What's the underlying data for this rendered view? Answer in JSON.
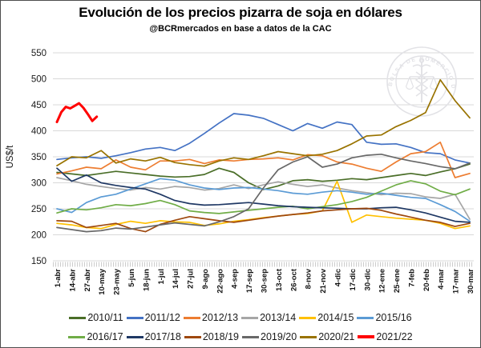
{
  "watermark": {
    "text": "BOLSA DE COMERCIO DE ROSARIO",
    "color": "#e2e2e6"
  },
  "chart_data": {
    "type": "line",
    "title": "Evolución de los precios pizarra de soja en dólares",
    "subtitle": "@BCRmercados en base a datos de la CAC",
    "ylabel": "US$/t",
    "ylim": [
      150,
      550
    ],
    "yticks": [
      550,
      500,
      450,
      400,
      350,
      300,
      250,
      200,
      150
    ],
    "grid": "horizontal",
    "grid_color": "#d9d9d9",
    "legend_position": "bottom",
    "x_tick_labels": [
      "1-abr",
      "14-abr",
      "27-abr",
      "10-may",
      "23-may",
      "5-jun",
      "18-jun",
      "1-jul",
      "14-jul",
      "27-jul",
      "9-ago",
      "22-ago",
      "4-sep",
      "17-sep",
      "30-sep",
      "13-oct",
      "26-oct",
      "8-nov",
      "21-nov",
      "4-dic",
      "17-dic",
      "30-dic",
      "12-ene",
      "25-ene",
      "7-feb",
      "20-feb",
      "4-mar",
      "17-mar",
      "30-mar"
    ],
    "series": [
      {
        "name": "2010/11",
        "color": "#4a6e28",
        "values": [
          320,
          317,
          314,
          318,
          322,
          319,
          316,
          313,
          311,
          312,
          316,
          328,
          320,
          300,
          287,
          294,
          304,
          306,
          303,
          305,
          308,
          306,
          310,
          314,
          318,
          314,
          321,
          327,
          336
        ]
      },
      {
        "name": "2011/12",
        "color": "#4472c4",
        "values": [
          345,
          348,
          350,
          347,
          352,
          358,
          365,
          368,
          362,
          376,
          395,
          415,
          433,
          430,
          424,
          412,
          400,
          414,
          405,
          417,
          412,
          378,
          374,
          375,
          368,
          358,
          356,
          344,
          338
        ]
      },
      {
        "name": "2012/13",
        "color": "#ed7d31",
        "values": [
          317,
          323,
          330,
          327,
          344,
          330,
          325,
          342,
          342,
          345,
          337,
          344,
          342,
          345,
          346,
          348,
          344,
          354,
          352,
          340,
          336,
          328,
          322,
          340,
          356,
          360,
          378,
          310,
          318
        ]
      },
      {
        "name": "2013/14",
        "color": "#a6a6a6",
        "values": [
          310,
          304,
          297,
          293,
          289,
          286,
          291,
          288,
          293,
          291,
          286,
          289,
          296,
          289,
          296,
          302,
          297,
          293,
          296,
          290,
          285,
          281,
          277,
          280,
          279,
          273,
          270,
          278,
          230
        ]
      },
      {
        "name": "2014/15",
        "color": "#ffc000",
        "values": [
          222,
          219,
          214,
          212,
          220,
          226,
          222,
          227,
          225,
          224,
          218,
          221,
          226,
          229,
          233,
          236,
          239,
          241,
          246,
          303,
          224,
          238,
          235,
          232,
          230,
          228,
          222,
          212,
          217
        ]
      },
      {
        "name": "2015/16",
        "color": "#5b9bd5",
        "values": [
          250,
          243,
          262,
          273,
          278,
          288,
          298,
          308,
          305,
          296,
          290,
          287,
          290,
          291,
          288,
          285,
          280,
          278,
          282,
          285,
          282,
          278,
          280,
          276,
          272,
          270,
          258,
          245,
          226
        ]
      },
      {
        "name": "2016/17",
        "color": "#70ad47",
        "values": [
          242,
          250,
          248,
          252,
          258,
          256,
          260,
          266,
          258,
          246,
          243,
          241,
          244,
          247,
          250,
          253,
          255,
          250,
          254,
          258,
          264,
          272,
          284,
          296,
          304,
          298,
          284,
          277,
          288
        ]
      },
      {
        "name": "2017/18",
        "color": "#1f3864",
        "values": [
          328,
          303,
          315,
          300,
          295,
          291,
          288,
          278,
          266,
          260,
          257,
          258,
          260,
          262,
          259,
          256,
          254,
          253,
          252,
          251,
          250,
          250,
          252,
          253,
          248,
          242,
          234,
          226,
          224
        ]
      },
      {
        "name": "2018/19",
        "color": "#9e480e",
        "values": [
          227,
          226,
          214,
          218,
          222,
          212,
          206,
          220,
          228,
          235,
          231,
          227,
          224,
          228,
          232,
          236,
          239,
          242,
          246,
          248,
          250,
          251,
          247,
          240,
          234,
          228,
          224,
          216,
          222
        ]
      },
      {
        "name": "2019/20",
        "color": "#686868",
        "values": [
          214,
          210,
          206,
          208,
          213,
          211,
          215,
          219,
          223,
          220,
          217,
          225,
          235,
          250,
          290,
          325,
          340,
          350,
          330,
          336,
          348,
          353,
          355,
          348,
          342,
          337,
          331,
          327,
          338
        ]
      },
      {
        "name": "2020/21",
        "color": "#997300",
        "values": [
          333,
          350,
          348,
          362,
          338,
          346,
          342,
          349,
          339,
          335,
          332,
          342,
          348,
          345,
          352,
          360,
          356,
          352,
          355,
          362,
          375,
          390,
          392,
          408,
          420,
          435,
          498,
          458,
          425
        ]
      },
      {
        "name": "2021/22",
        "color": "#ff0000",
        "width": 3,
        "x_idx": [
          0,
          0.3,
          0.6,
          0.9,
          1.2,
          1.5,
          1.8,
          2.1,
          2.4,
          2.7
        ],
        "values": [
          417,
          436,
          446,
          443,
          448,
          453,
          444,
          432,
          419,
          427
        ]
      }
    ]
  }
}
